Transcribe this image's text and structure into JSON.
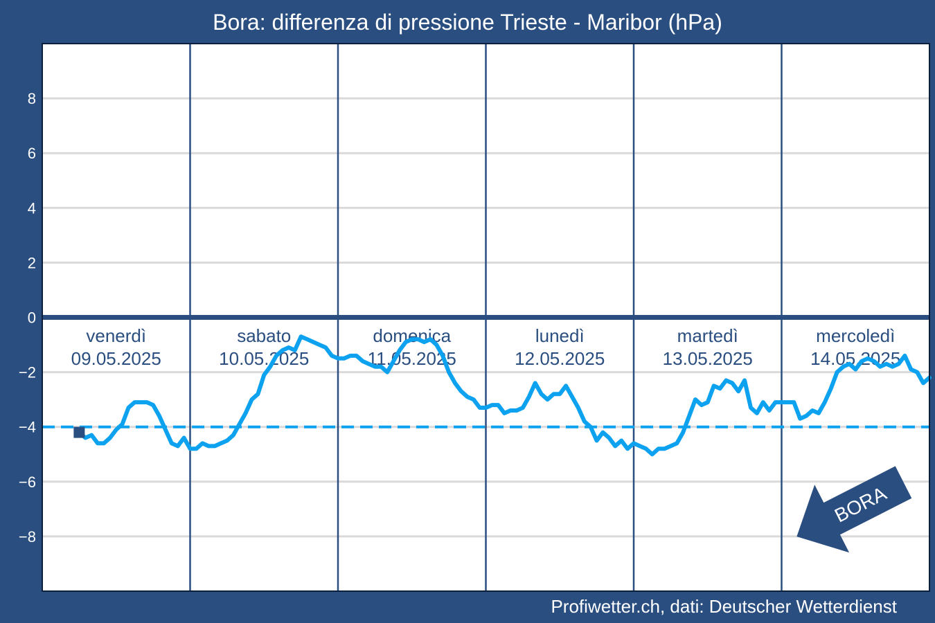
{
  "title": "Bora: differenza di pressione Trieste - Maribor (hPa)",
  "source": "Profiwetter.ch, dati: Deutscher Wetterdienst",
  "colors": {
    "background": "#2a4e80",
    "plot_background": "#ffffff",
    "line": "#0da2f0",
    "threshold": "#0da2f0",
    "grid": "#d9d9d9",
    "zero_line": "#2a4e80",
    "day_separator": "#2a4e80"
  },
  "annotation": {
    "text": "BORA",
    "icon": "arrow-southwest-icon"
  },
  "chart_data": {
    "type": "line",
    "title": "Bora: differenza di pressione Trieste - Maribor (hPa)",
    "xlabel": "",
    "ylabel": "",
    "ylim": [
      -10,
      10
    ],
    "yticks": [
      -8,
      -6,
      -4,
      -2,
      0,
      2,
      4,
      6,
      8
    ],
    "ytick_labels": [
      "−8",
      "−6",
      "−4",
      "−2",
      "0",
      "2",
      "4",
      "6",
      "8"
    ],
    "grid": true,
    "xlim_hours": [
      0,
      144
    ],
    "days": [
      {
        "name": "venerdì",
        "date": "09.05.2025"
      },
      {
        "name": "sabato",
        "date": "10.05.2025"
      },
      {
        "name": "domenica",
        "date": "11.05.2025"
      },
      {
        "name": "lunedì",
        "date": "12.05.2025"
      },
      {
        "name": "martedì",
        "date": "13.05.2025"
      },
      {
        "name": "mercoledì",
        "date": "14.05.2025"
      }
    ],
    "threshold": -4,
    "start_marker": {
      "x": 6,
      "y": -4.2
    },
    "series": [
      {
        "x": [
          6,
          7,
          8,
          9,
          10,
          11,
          12,
          13,
          14,
          15,
          16,
          17,
          18,
          19,
          20,
          21,
          22,
          23,
          24,
          25,
          26,
          27,
          28,
          29,
          30,
          31,
          32,
          33,
          34,
          35,
          36,
          37,
          38,
          39,
          40,
          41,
          42,
          43,
          44,
          45,
          46,
          47,
          48,
          49,
          50,
          51,
          52,
          53,
          54,
          55,
          56,
          57,
          58,
          59,
          60,
          61,
          62,
          63,
          64,
          65,
          66,
          67,
          68,
          69,
          70,
          71,
          72,
          73,
          74,
          75,
          76,
          77,
          78,
          79,
          80,
          81,
          82,
          83,
          84,
          85,
          86,
          87,
          88,
          89,
          90,
          91,
          92,
          93,
          94,
          95,
          96,
          97,
          98,
          99,
          100,
          101,
          102,
          103,
          104,
          105,
          106,
          107,
          108,
          109,
          110,
          111,
          112,
          113,
          114,
          115,
          116,
          117,
          118,
          119,
          120,
          121,
          122,
          123,
          124,
          125,
          126,
          127,
          128,
          129,
          130,
          131,
          132,
          133,
          134,
          135,
          136,
          137,
          138,
          139,
          140,
          141,
          142,
          143,
          144
        ],
        "y": [
          -4.2,
          -4.4,
          -4.3,
          -4.6,
          -4.6,
          -4.4,
          -4.1,
          -3.9,
          -3.3,
          -3.1,
          -3.1,
          -3.1,
          -3.2,
          -3.6,
          -4.1,
          -4.6,
          -4.7,
          -4.4,
          -4.8,
          -4.8,
          -4.6,
          -4.7,
          -4.7,
          -4.6,
          -4.5,
          -4.3,
          -3.9,
          -3.5,
          -3.0,
          -2.8,
          -2.1,
          -1.8,
          -1.4,
          -1.2,
          -1.1,
          -1.2,
          -0.7,
          -0.8,
          -0.9,
          -1.0,
          -1.1,
          -1.4,
          -1.5,
          -1.5,
          -1.4,
          -1.4,
          -1.6,
          -1.7,
          -1.8,
          -1.8,
          -2.0,
          -1.6,
          -1.2,
          -0.9,
          -0.8,
          -0.8,
          -0.9,
          -0.8,
          -1.0,
          -1.4,
          -2.0,
          -2.4,
          -2.7,
          -2.9,
          -3.0,
          -3.3,
          -3.3,
          -3.2,
          -3.2,
          -3.5,
          -3.4,
          -3.4,
          -3.3,
          -2.9,
          -2.4,
          -2.8,
          -3.0,
          -2.8,
          -2.8,
          -2.5,
          -2.9,
          -3.3,
          -3.8,
          -4.0,
          -4.5,
          -4.2,
          -4.4,
          -4.7,
          -4.5,
          -4.8,
          -4.6,
          -4.7,
          -4.8,
          -5.0,
          -4.8,
          -4.8,
          -4.7,
          -4.6,
          -4.2,
          -3.6,
          -3.0,
          -3.2,
          -3.1,
          -2.5,
          -2.6,
          -2.3,
          -2.4,
          -2.7,
          -2.3,
          -3.3,
          -3.5,
          -3.1,
          -3.4,
          -3.1,
          -3.1,
          -3.1,
          -3.1,
          -3.7,
          -3.6,
          -3.4,
          -3.5,
          -3.1,
          -2.6,
          -2.0,
          -1.8,
          -1.7,
          -1.9,
          -1.6,
          -1.5,
          -1.6,
          -1.8,
          -1.7,
          -1.8,
          -1.7,
          -1.4,
          -1.9,
          -2.0,
          -2.4,
          -2.2
        ]
      }
    ]
  }
}
